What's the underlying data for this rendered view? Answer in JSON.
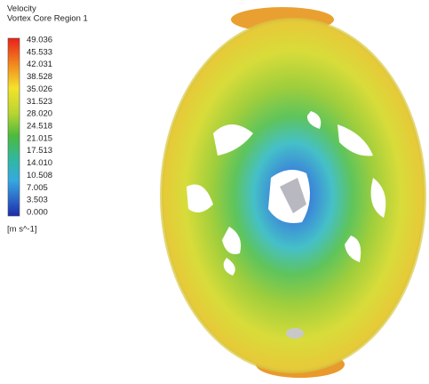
{
  "legend": {
    "title": "Velocity",
    "subtitle": "Vortex Core Region 1",
    "labels": [
      "49.036",
      "45.533",
      "42.031",
      "38.528",
      "35.026",
      "31.523",
      "28.020",
      "24.518",
      "21.015",
      "17.513",
      "14.010",
      "10.508",
      "7.005",
      "3.503",
      "0.000"
    ],
    "unit": "[m s^-1]"
  }
}
